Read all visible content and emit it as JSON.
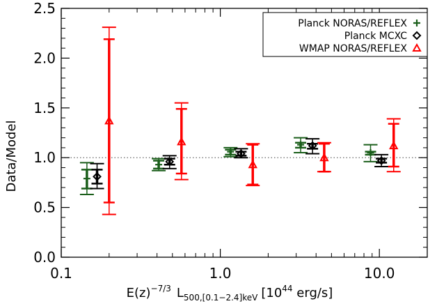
{
  "chart_data": {
    "type": "scatter",
    "title": "",
    "xlabel": {
      "prefix": "E(z)",
      "prefix_sup": "−7/3",
      "main": "L",
      "main_sub": "500,[0.1−2.4]keV",
      "unit_open": "[10",
      "unit_sup": "44",
      "unit_close": " erg/s]"
    },
    "ylabel": "Data/Model",
    "x_scale": "log",
    "xlim": [
      0.1,
      20
    ],
    "ylim": [
      0.0,
      2.5
    ],
    "x_ticks": [
      {
        "value": 0.1,
        "label": "0.1"
      },
      {
        "value": 1.0,
        "label": "1.0"
      },
      {
        "value": 10.0,
        "label": "10.0"
      }
    ],
    "y_ticks": [
      {
        "value": 0.0,
        "label": "0.0"
      },
      {
        "value": 0.5,
        "label": "0.5"
      },
      {
        "value": 1.0,
        "label": "1.0"
      },
      {
        "value": 1.5,
        "label": "1.5"
      },
      {
        "value": 2.0,
        "label": "2.0"
      },
      {
        "value": 2.5,
        "label": "2.5"
      }
    ],
    "reference_line": {
      "y": 1.0,
      "style": "dotted"
    },
    "legend_position": "top-right",
    "series": [
      {
        "name": "Planck NORAS/REFLEX",
        "marker": "plus",
        "color": "#1a5e1a",
        "points": [
          {
            "x": 0.145,
            "y": 0.79,
            "inner": [
              0.69,
              0.88
            ],
            "outer": [
              0.63,
              0.95
            ]
          },
          {
            "x": 0.41,
            "y": 0.93,
            "inner": [
              0.89,
              0.97
            ],
            "outer": [
              0.87,
              0.99
            ]
          },
          {
            "x": 1.16,
            "y": 1.06,
            "inner": [
              1.03,
              1.08
            ],
            "outer": [
              1.01,
              1.1
            ]
          },
          {
            "x": 3.2,
            "y": 1.13,
            "inner": [
              1.1,
              1.15
            ],
            "outer": [
              1.05,
              1.2
            ]
          },
          {
            "x": 8.8,
            "y": 1.05,
            "inner": [
              1.03,
              1.06
            ],
            "outer": [
              0.96,
              1.13
            ]
          }
        ]
      },
      {
        "name": "Planck MCXC",
        "marker": "diamond",
        "color": "#000000",
        "points": [
          {
            "x": 0.168,
            "y": 0.81,
            "inner": [
              0.74,
              0.88
            ],
            "outer": [
              0.69,
              0.94
            ]
          },
          {
            "x": 0.48,
            "y": 0.96,
            "inner": [
              0.93,
              0.99
            ],
            "outer": [
              0.89,
              1.02
            ]
          },
          {
            "x": 1.35,
            "y": 1.04,
            "inner": [
              1.02,
              1.06
            ],
            "outer": [
              1.0,
              1.09
            ]
          },
          {
            "x": 3.8,
            "y": 1.12,
            "inner": [
              1.09,
              1.14
            ],
            "outer": [
              1.04,
              1.19
            ]
          },
          {
            "x": 10.3,
            "y": 0.97,
            "inner": [
              0.95,
              0.99
            ],
            "outer": [
              0.91,
              1.03
            ]
          }
        ]
      },
      {
        "name": "WMAP NORAS/REFLEX",
        "marker": "triangle",
        "color": "#ff0000",
        "points": [
          {
            "x": 0.2,
            "y": 1.37,
            "inner": [
              0.55,
              2.19
            ],
            "outer": [
              0.43,
              2.31
            ]
          },
          {
            "x": 0.57,
            "y": 1.16,
            "inner": [
              0.84,
              1.49
            ],
            "outer": [
              0.78,
              1.55
            ]
          },
          {
            "x": 1.6,
            "y": 0.93,
            "inner": [
              0.73,
              1.13
            ],
            "outer": [
              0.72,
              1.14
            ]
          },
          {
            "x": 4.5,
            "y": 1.0,
            "inner": [
              0.86,
              1.14
            ],
            "outer": [
              0.86,
              1.15
            ]
          },
          {
            "x": 12.3,
            "y": 1.12,
            "inner": [
              0.91,
              1.34
            ],
            "outer": [
              0.86,
              1.39
            ]
          }
        ]
      }
    ]
  }
}
